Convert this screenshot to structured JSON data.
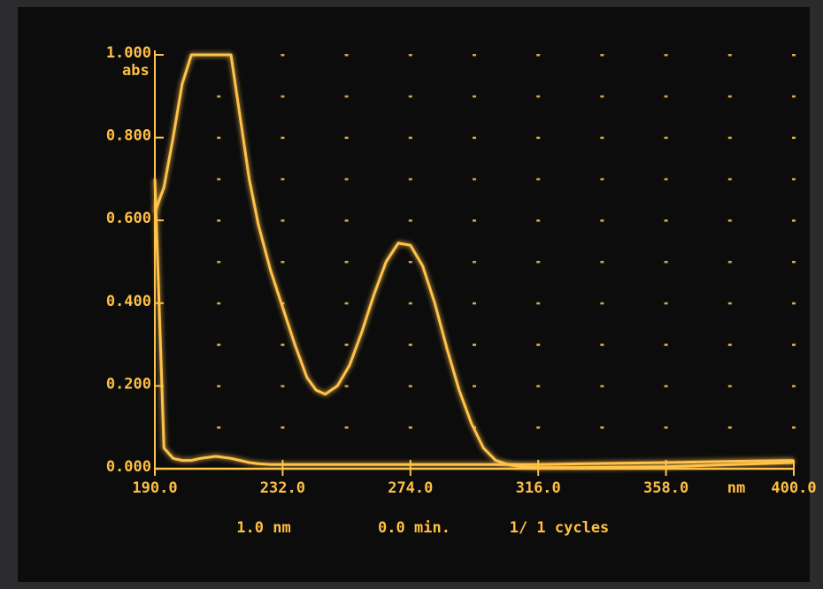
{
  "chart_data": {
    "type": "line",
    "xlabel": "nm",
    "ylabel": "abs",
    "xlim": [
      190,
      400
    ],
    "ylim": [
      0,
      1
    ],
    "xticks": [
      {
        "value": 190,
        "label": "190.0"
      },
      {
        "value": 232,
        "label": "232.0"
      },
      {
        "value": 274,
        "label": "274.0"
      },
      {
        "value": 316,
        "label": "316.0"
      },
      {
        "value": 358,
        "label": "358.0"
      },
      {
        "value": 400,
        "label": "400.0"
      }
    ],
    "yticks": [
      {
        "value": 0,
        "label": "0.000"
      },
      {
        "value": 0.2,
        "label": "0.200"
      },
      {
        "value": 0.4,
        "label": "0.400"
      },
      {
        "value": 0.6,
        "label": "0.600"
      },
      {
        "value": 0.8,
        "label": "0.800"
      },
      {
        "value": 1,
        "label": "1.000"
      }
    ],
    "grid": true,
    "x": [
      190,
      193,
      196,
      199,
      202,
      205,
      210,
      215,
      218,
      221,
      224,
      228,
      232,
      236,
      240,
      243,
      246,
      250,
      254,
      258,
      262,
      266,
      270,
      274,
      278,
      282,
      286,
      290,
      294,
      298,
      302,
      306,
      310,
      316,
      330,
      358,
      380,
      400
    ],
    "series": [
      {
        "color": "#ffc24a",
        "values": [
          0.62,
          0.68,
          0.8,
          0.93,
          1,
          1,
          1,
          1,
          0.85,
          0.7,
          0.59,
          0.48,
          0.39,
          0.3,
          0.22,
          0.19,
          0.18,
          0.2,
          0.25,
          0.33,
          0.42,
          0.5,
          0.545,
          0.54,
          0.49,
          0.4,
          0.29,
          0.19,
          0.11,
          0.05,
          0.02,
          0.01,
          0.005,
          0.003,
          0.003,
          0.005,
          0.01,
          0.015
        ]
      },
      {
        "color": "#ffc24a",
        "values": [
          0.7,
          0.05,
          0.025,
          0.02,
          0.02,
          0.025,
          0.03,
          0.025,
          0.02,
          0.015,
          0.012,
          0.01,
          0.01,
          0.01,
          0.01,
          0.01,
          0.01,
          0.01,
          0.01,
          0.01,
          0.01,
          0.01,
          0.01,
          0.01,
          0.01,
          0.01,
          0.01,
          0.01,
          0.01,
          0.01,
          0.01,
          0.01,
          0.01,
          0.01,
          0.012,
          0.015,
          0.018,
          0.02
        ]
      }
    ],
    "footer": [
      "1.0 nm",
      "0.0 min.",
      "1/ 1 cycles"
    ]
  }
}
